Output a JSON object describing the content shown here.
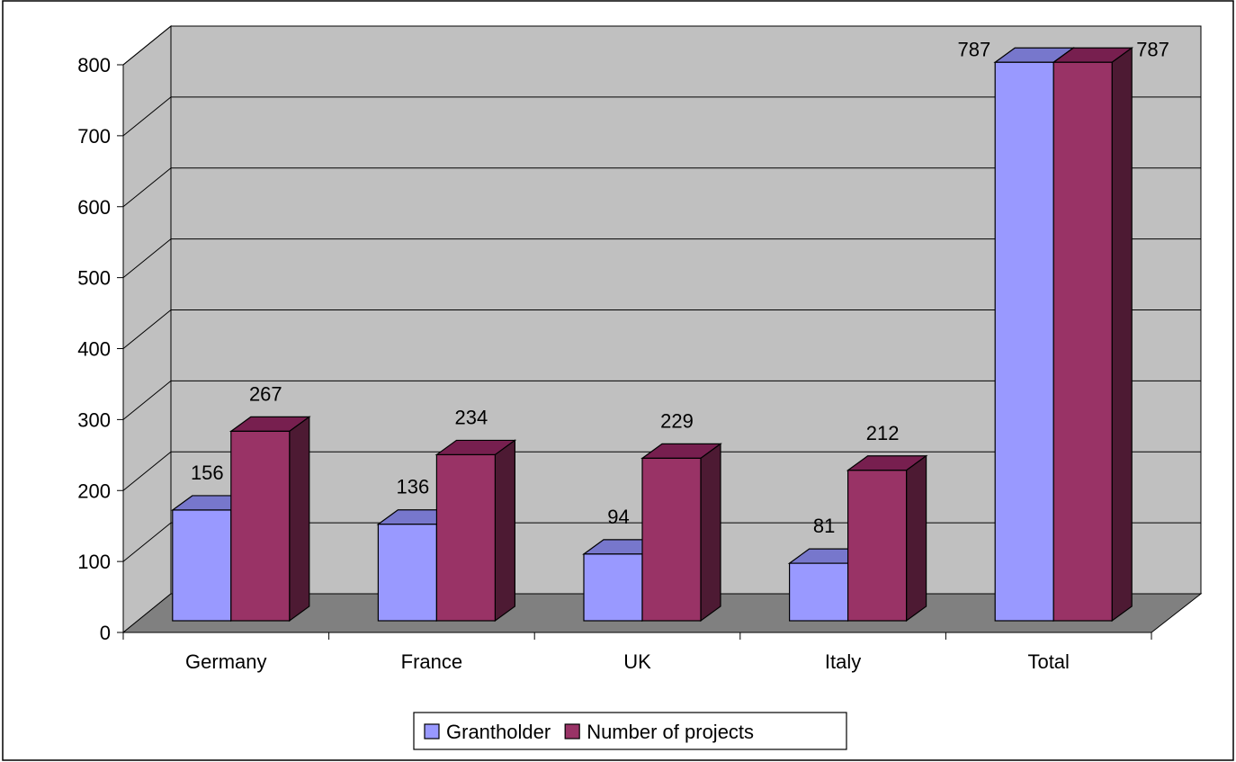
{
  "chart_data": {
    "type": "bar",
    "style": "3d-clustered-column",
    "categories": [
      "Germany",
      "France",
      "UK",
      "Italy",
      "Total"
    ],
    "series": [
      {
        "name": "Grantholder",
        "values": [
          156,
          136,
          94,
          81,
          787
        ],
        "color": "#9999ff"
      },
      {
        "name": "Number of projects",
        "values": [
          267,
          234,
          229,
          212,
          787
        ],
        "color": "#993366"
      }
    ],
    "ylim": [
      0,
      800
    ],
    "yticks": [
      0,
      100,
      200,
      300,
      400,
      500,
      600,
      700,
      800
    ],
    "title": "",
    "xlabel": "",
    "ylabel": "",
    "grid": true,
    "data_labels": true,
    "legend_position": "bottom"
  },
  "colors": {
    "back_wall": "#c0c0c0",
    "side_wall": "#c0c0c0",
    "floor": "#808080",
    "series1_top": "#7777cc",
    "series2_top": "#771f4f",
    "series2_side": "#4d1a33"
  }
}
